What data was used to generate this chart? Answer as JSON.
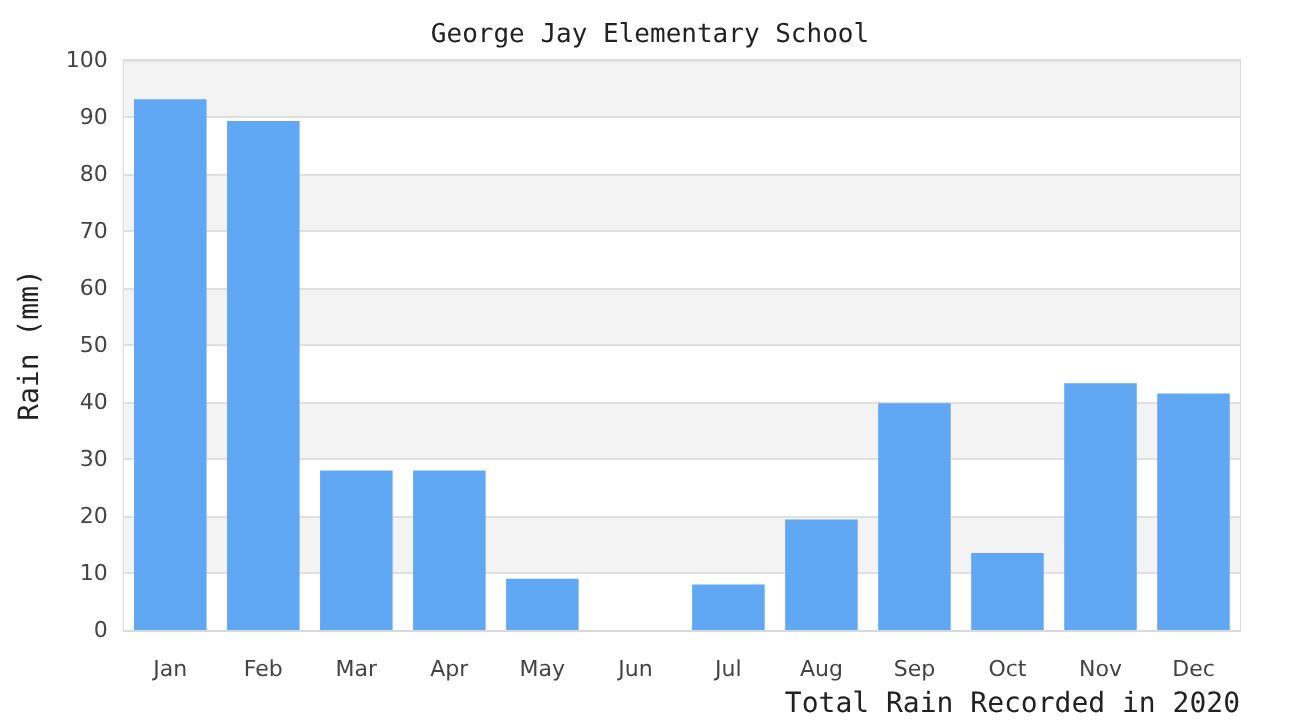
{
  "chart_data": {
    "type": "bar",
    "title": "George Jay Elementary School",
    "xlabel": "Total Rain Recorded in 2020",
    "ylabel": "Rain (mm)",
    "categories": [
      "Jan",
      "Feb",
      "Mar",
      "Apr",
      "May",
      "Jun",
      "Jul",
      "Aug",
      "Sep",
      "Oct",
      "Nov",
      "Dec"
    ],
    "values": [
      93.1,
      89.3,
      28,
      28,
      9,
      0,
      8,
      19.4,
      39.8,
      13.5,
      43.3,
      41.5
    ],
    "color": "#60a8f4",
    "ylim": [
      0,
      100
    ],
    "yticks": [
      0,
      10,
      20,
      30,
      40,
      50,
      60,
      70,
      80,
      90,
      100
    ],
    "grid": "y"
  }
}
